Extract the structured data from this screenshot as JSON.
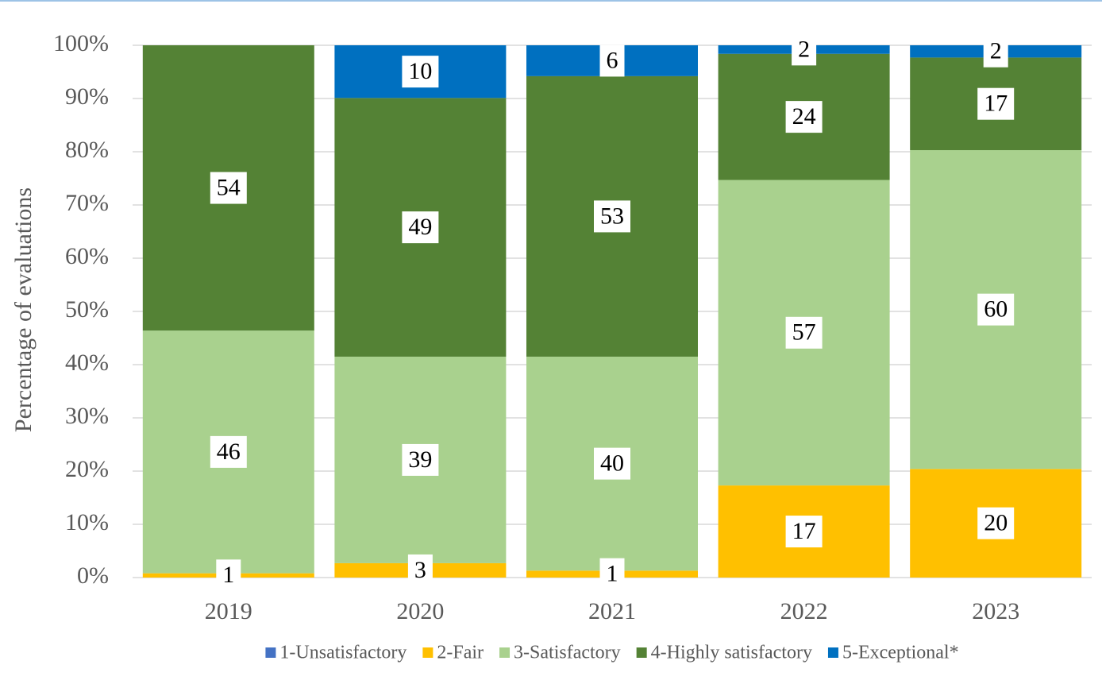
{
  "chart_data": {
    "type": "stacked_bar",
    "y_label": "Percentage of evaluations",
    "categories": [
      "2019",
      "2020",
      "2021",
      "2022",
      "2023"
    ],
    "series": [
      {
        "name": "1-Unsatisfactory",
        "color": "#4472c4",
        "values": [
          0,
          0,
          0,
          0,
          0
        ]
      },
      {
        "name": "2-Fair",
        "color": "#ffc000",
        "values": [
          0.8,
          2.7,
          1.3,
          17.3,
          20.4
        ],
        "value_labels": [
          "1",
          "3",
          "1",
          "17",
          "20"
        ]
      },
      {
        "name": "3-Satisfactory",
        "color": "#a9d18e",
        "values": [
          45.6,
          38.8,
          40.2,
          57.4,
          59.9
        ],
        "value_labels": [
          "46",
          "39",
          "40",
          "57",
          "60"
        ]
      },
      {
        "name": "4-Highly satisfactory",
        "color": "#548235",
        "values": [
          53.6,
          48.6,
          52.7,
          23.7,
          17.4
        ],
        "value_labels": [
          "54",
          "49",
          "53",
          "24",
          "17"
        ]
      },
      {
        "name": "5-Exceptional*",
        "color": "#0070c0",
        "values": [
          0,
          9.9,
          5.8,
          1.6,
          2.3
        ],
        "value_labels": [
          null,
          "10",
          "6",
          "2",
          "2"
        ]
      }
    ],
    "ylim": [
      0,
      100
    ],
    "yticks": [
      {
        "value": 0,
        "label": "0%"
      },
      {
        "value": 10,
        "label": "10%"
      },
      {
        "value": 20,
        "label": "20%"
      },
      {
        "value": 30,
        "label": "30%"
      },
      {
        "value": 40,
        "label": "40%"
      },
      {
        "value": 50,
        "label": "50%"
      },
      {
        "value": 60,
        "label": "60%"
      },
      {
        "value": 70,
        "label": "70%"
      },
      {
        "value": 80,
        "label": "80%"
      },
      {
        "value": 90,
        "label": "90%"
      },
      {
        "value": 100,
        "label": "100%"
      }
    ],
    "grid": true,
    "legend": "bottom"
  }
}
